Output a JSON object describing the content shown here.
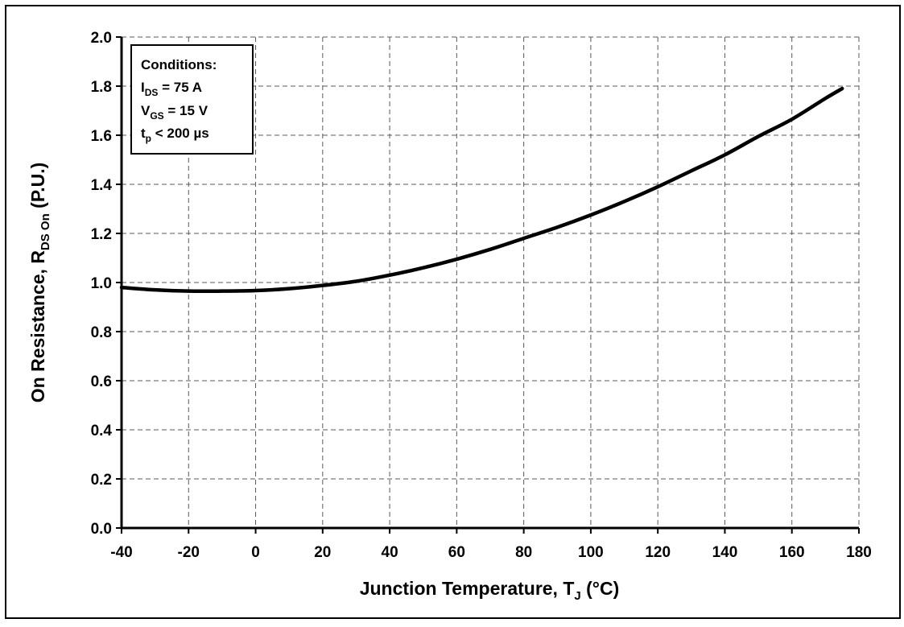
{
  "chart_data": {
    "type": "line",
    "title": "",
    "xlabel": {
      "main": "Junction Temperature, T",
      "sub": "J",
      "tail": " (°C)"
    },
    "ylabel": {
      "main": "On Resistance, R",
      "sub": "DS On",
      "tail": " (P.U.)"
    },
    "xlim": [
      -40,
      180
    ],
    "ylim": [
      0.0,
      2.0
    ],
    "x_ticks": [
      -40,
      -20,
      0,
      20,
      40,
      60,
      80,
      100,
      120,
      140,
      160,
      180
    ],
    "x_tick_labels": [
      "-40",
      "-20",
      "0",
      "20",
      "40",
      "60",
      "80",
      "100",
      "120",
      "140",
      "160",
      "180"
    ],
    "y_ticks": [
      0.0,
      0.2,
      0.4,
      0.6,
      0.8,
      1.0,
      1.2,
      1.4,
      1.6,
      1.8,
      2.0
    ],
    "y_tick_labels": [
      "0.0",
      "0.2",
      "0.4",
      "0.6",
      "0.8",
      "1.0",
      "1.2",
      "1.4",
      "1.6",
      "1.8",
      "2.0"
    ],
    "grid": true,
    "series": [
      {
        "color": "#000000",
        "x": [
          -40,
          -30,
          -20,
          -10,
          0,
          10,
          20,
          30,
          40,
          50,
          60,
          70,
          80,
          90,
          100,
          110,
          120,
          130,
          140,
          150,
          160,
          170,
          175
        ],
        "y": [
          0.98,
          0.97,
          0.965,
          0.965,
          0.967,
          0.975,
          0.988,
          1.005,
          1.03,
          1.06,
          1.095,
          1.135,
          1.18,
          1.225,
          1.275,
          1.33,
          1.39,
          1.455,
          1.52,
          1.595,
          1.665,
          1.75,
          1.79
        ]
      }
    ],
    "annotation": {
      "lines": [
        {
          "main": "Conditions:",
          "sub": "",
          "tail": ""
        },
        {
          "main": "I",
          "sub": "DS",
          "tail": " = 75 A"
        },
        {
          "main": "V",
          "sub": "GS",
          "tail": " = 15 V"
        },
        {
          "main": "t",
          "sub": "p",
          "tail": " < 200 µs"
        }
      ]
    }
  }
}
